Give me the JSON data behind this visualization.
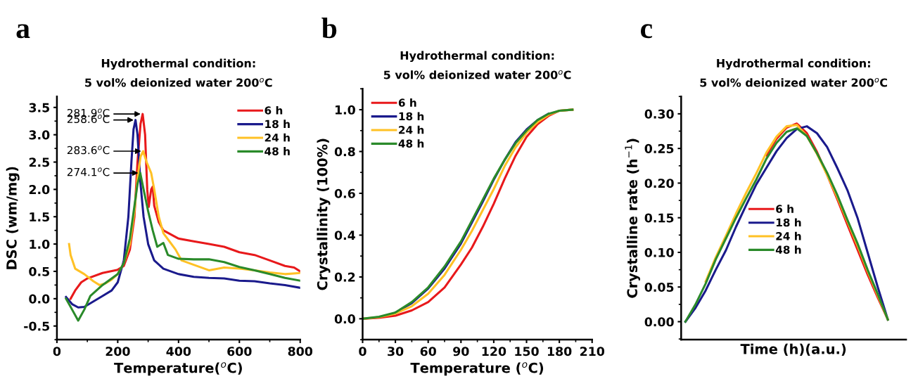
{
  "chart_data": [
    {
      "type": "line",
      "title": "Hydrothermal condition:\n5 vol% deionized water 200$^{o}$C",
      "xlabel": "Temperature($^{o}$C)",
      "ylabel": "DSC (wm/mg)",
      "xlim": [
        0,
        800
      ],
      "ylim": [
        -0.75,
        3.7
      ],
      "xticks": [
        0,
        200,
        400,
        600,
        800
      ],
      "yticks": [
        -0.5,
        {
          "value": 0,
          "label": "0.0"
        },
        0.5,
        {
          "value": 1,
          "label": "1.0"
        },
        1.5,
        {
          "value": 2,
          "label": "2.0"
        },
        2.5,
        {
          "value": 3,
          "label": "3.0"
        },
        3.5
      ],
      "legend": "top right",
      "grid": false,
      "annotations": [
        "a",
        {
          "text": "281.9$^{o}$C",
          "x": 281.9,
          "y": 3.38
        },
        {
          "text": "258.6$^{o}$C",
          "x": 258.6,
          "y": 3.27
        },
        {
          "text": "283.6$^{o}$C",
          "x": 283.6,
          "y": 2.7
        },
        {
          "text": "274.1$^{o}$C",
          "x": 274.1,
          "y": 2.3
        }
      ],
      "series": [
        {
          "name": "6 h",
          "color": "#e8191b",
          "x": [
            45,
            60,
            80,
            100,
            150,
            200,
            220,
            240,
            255,
            265,
            275,
            282,
            290,
            297,
            302,
            310,
            315,
            320,
            335,
            350,
            400,
            450,
            500,
            550,
            600,
            650,
            700,
            750,
            780,
            800
          ],
          "values": [
            0.0,
            0.15,
            0.3,
            0.37,
            0.47,
            0.53,
            0.6,
            0.9,
            1.5,
            2.5,
            3.2,
            3.38,
            3.0,
            2.0,
            1.68,
            2.0,
            2.05,
            1.7,
            1.4,
            1.25,
            1.1,
            1.05,
            1.0,
            0.95,
            0.85,
            0.8,
            0.7,
            0.6,
            0.57,
            0.5
          ]
        },
        {
          "name": "18 h",
          "color": "#1a1a8c",
          "x": [
            30,
            50,
            70,
            90,
            120,
            150,
            180,
            200,
            220,
            235,
            245,
            252,
            258.6,
            265,
            275,
            285,
            300,
            320,
            350,
            400,
            450,
            500,
            550,
            600,
            650,
            700,
            750,
            800
          ],
          "values": [
            0.03,
            -0.1,
            -0.16,
            -0.15,
            -0.05,
            0.05,
            0.15,
            0.3,
            0.7,
            1.5,
            2.5,
            3.1,
            3.27,
            3.0,
            2.1,
            1.5,
            1.0,
            0.7,
            0.55,
            0.45,
            0.4,
            0.38,
            0.37,
            0.33,
            0.32,
            0.28,
            0.25,
            0.2
          ]
        },
        {
          "name": "24 h",
          "color": "#ffc125",
          "x": [
            40,
            45,
            60,
            90,
            120,
            140,
            160,
            180,
            200,
            220,
            240,
            255,
            265,
            275,
            283.6,
            295,
            310,
            320,
            335,
            350,
            370,
            390,
            410,
            450,
            500,
            550,
            600,
            650,
            700,
            750,
            800
          ],
          "values": [
            1.0,
            0.8,
            0.55,
            0.45,
            0.32,
            0.25,
            0.28,
            0.35,
            0.45,
            0.65,
            1.0,
            1.6,
            2.2,
            2.6,
            2.7,
            2.5,
            2.3,
            2.0,
            1.5,
            1.2,
            1.05,
            0.9,
            0.7,
            0.62,
            0.52,
            0.57,
            0.55,
            0.52,
            0.48,
            0.45,
            0.47
          ]
        },
        {
          "name": "48 h",
          "color": "#2a8a2a",
          "x": [
            30,
            50,
            70,
            90,
            110,
            150,
            200,
            220,
            240,
            255,
            265,
            274.1,
            285,
            300,
            315,
            330,
            350,
            365,
            400,
            450,
            500,
            550,
            600,
            650,
            700,
            750,
            800
          ],
          "values": [
            0.0,
            -0.2,
            -0.4,
            -0.2,
            0.05,
            0.25,
            0.45,
            0.65,
            1.1,
            1.7,
            2.1,
            2.3,
            2.0,
            1.6,
            1.25,
            0.95,
            1.02,
            0.8,
            0.73,
            0.72,
            0.72,
            0.67,
            0.58,
            0.52,
            0.45,
            0.38,
            0.33
          ]
        }
      ]
    },
    {
      "type": "line",
      "title": "Hydrothermal condition:\n5 vol% deionized water 200$^{o}$C",
      "xlabel": "Temperature ($^{o}$C)",
      "ylabel": "Crystallinity (100%)",
      "xlim": [
        0,
        210
      ],
      "ylim": [
        -0.1,
        1.1
      ],
      "xticks": [
        0,
        30,
        60,
        90,
        120,
        150,
        180,
        210
      ],
      "yticks": [
        {
          "value": 0,
          "label": "0.0"
        },
        0.2,
        0.4,
        0.6,
        0.8,
        {
          "value": 1,
          "label": "1.0"
        }
      ],
      "legend": "top left",
      "grid": false,
      "annotations": [
        "b"
      ],
      "x": [
        0,
        15,
        30,
        45,
        60,
        75,
        90,
        100,
        110,
        120,
        130,
        140,
        150,
        160,
        170,
        180,
        192
      ],
      "series": [
        {
          "name": "6 h",
          "color": "#e8191b",
          "values": [
            0,
            0.005,
            0.015,
            0.04,
            0.08,
            0.15,
            0.26,
            0.34,
            0.44,
            0.55,
            0.67,
            0.78,
            0.87,
            0.93,
            0.97,
            0.995,
            1.0
          ]
        },
        {
          "name": "18 h",
          "color": "#1a1a8c",
          "values": [
            null,
            null,
            0.03,
            0.075,
            0.145,
            0.24,
            0.36,
            0.46,
            0.56,
            0.665,
            0.76,
            0.845,
            0.905,
            0.95,
            0.98,
            null,
            null
          ]
        },
        {
          "name": "24 h",
          "color": "#ffc125",
          "values": [
            0,
            0.008,
            0.025,
            0.06,
            0.12,
            0.21,
            0.33,
            0.42,
            0.52,
            0.62,
            0.73,
            0.82,
            0.89,
            0.94,
            0.975,
            0.995,
            1.0
          ]
        },
        {
          "name": "48 h",
          "color": "#2a8a2a",
          "values": [
            0,
            0.01,
            0.03,
            0.08,
            0.15,
            0.25,
            0.37,
            0.47,
            0.57,
            0.67,
            0.76,
            0.84,
            0.9,
            0.95,
            0.98,
            0.995,
            1.0
          ]
        }
      ]
    },
    {
      "type": "line",
      "title": "Hydrothermal condition:\n5 vol% deionized water 200$^{o}$C",
      "xlabel": "Time (h)(a.u.)",
      "ylabel": "Crystalline rate (h$^{−1}$)",
      "ylim": [
        -0.026,
        0.325
      ],
      "yticks": [
        {
          "value": 0,
          "label": "0.00"
        },
        {
          "value": 0.05,
          "label": "0.05"
        },
        {
          "value": 0.1,
          "label": "0.10"
        },
        {
          "value": 0.15,
          "label": "0.15"
        },
        {
          "value": 0.2,
          "label": "0.20"
        },
        {
          "value": 0.25,
          "label": "0.25"
        },
        {
          "value": 0.3,
          "label": "0.30"
        }
      ],
      "legend": "center",
      "grid": false,
      "tick_labels": "y",
      "annotations": [
        "c"
      ],
      "categories": [
        null,
        null,
        null,
        null,
        null,
        null,
        null,
        null,
        null,
        null,
        null,
        null,
        null,
        null,
        null,
        null,
        null,
        null,
        null,
        null,
        null
      ],
      "series": [
        {
          "name": "6 h",
          "color": "#e8191b",
          "values": [
            null,
            null,
            null,
            null,
            null,
            null,
            null,
            null,
            0.24,
            0.264,
            0.28,
            0.286,
            0.272,
            0.245,
            0.212,
            0.177,
            0.14,
            0.104,
            0.068,
            0.035,
            0.003
          ]
        },
        {
          "name": "18 h",
          "color": "#1a1a8c",
          "values": [
            0,
            0.02,
            0.045,
            0.075,
            0.103,
            0.137,
            0.168,
            0.198,
            0.222,
            0.246,
            0.265,
            0.278,
            0.282,
            0.272,
            0.252,
            0.222,
            0.19,
            0.15,
            0.1,
            0.05,
            0.003
          ]
        },
        {
          "name": "24 h",
          "color": "#ffc125",
          "values": [
            null,
            null,
            0.058,
            0.093,
            0.124,
            0.156,
            0.186,
            0.214,
            0.244,
            0.267,
            0.282,
            0.284,
            0.268,
            0.242,
            0.212,
            0.18,
            0.145,
            0.11,
            0.073,
            0.038,
            0.003
          ]
        },
        {
          "name": "48 h",
          "color": "#2a8a2a",
          "values": [
            0,
            0.025,
            0.055,
            0.09,
            0.12,
            0.15,
            0.178,
            0.205,
            0.235,
            0.258,
            0.274,
            0.279,
            0.268,
            0.243,
            0.215,
            0.183,
            0.147,
            0.113,
            0.075,
            0.04,
            0.003
          ]
        }
      ]
    }
  ]
}
